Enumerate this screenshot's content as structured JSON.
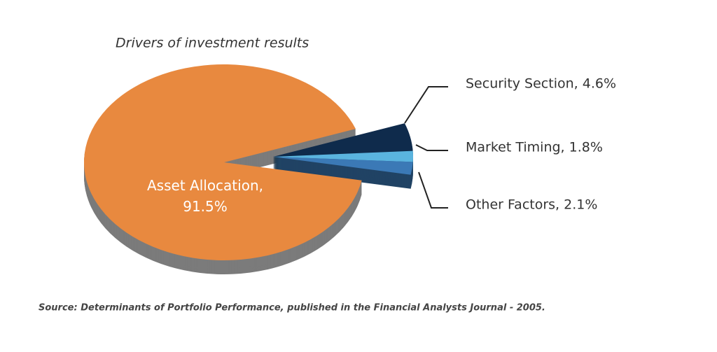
{
  "chart_data": {
    "type": "pie",
    "title": "Drivers of investment results",
    "values": [
      91.5,
      4.6,
      1.8,
      2.1
    ],
    "value_labels": [
      "Asset Allocation, 91.5%",
      "Security Section, 4.6%",
      "Market Timing, 1.8%",
      "Other Factors, 2.1%"
    ],
    "colors": [
      "#e8893f",
      "#0f2b4c",
      "#5ab4df",
      "#3b79b6"
    ],
    "source": "Source: Determinants of Portfolio Performance, published in the Financial Analysts Journal - 2005."
  }
}
